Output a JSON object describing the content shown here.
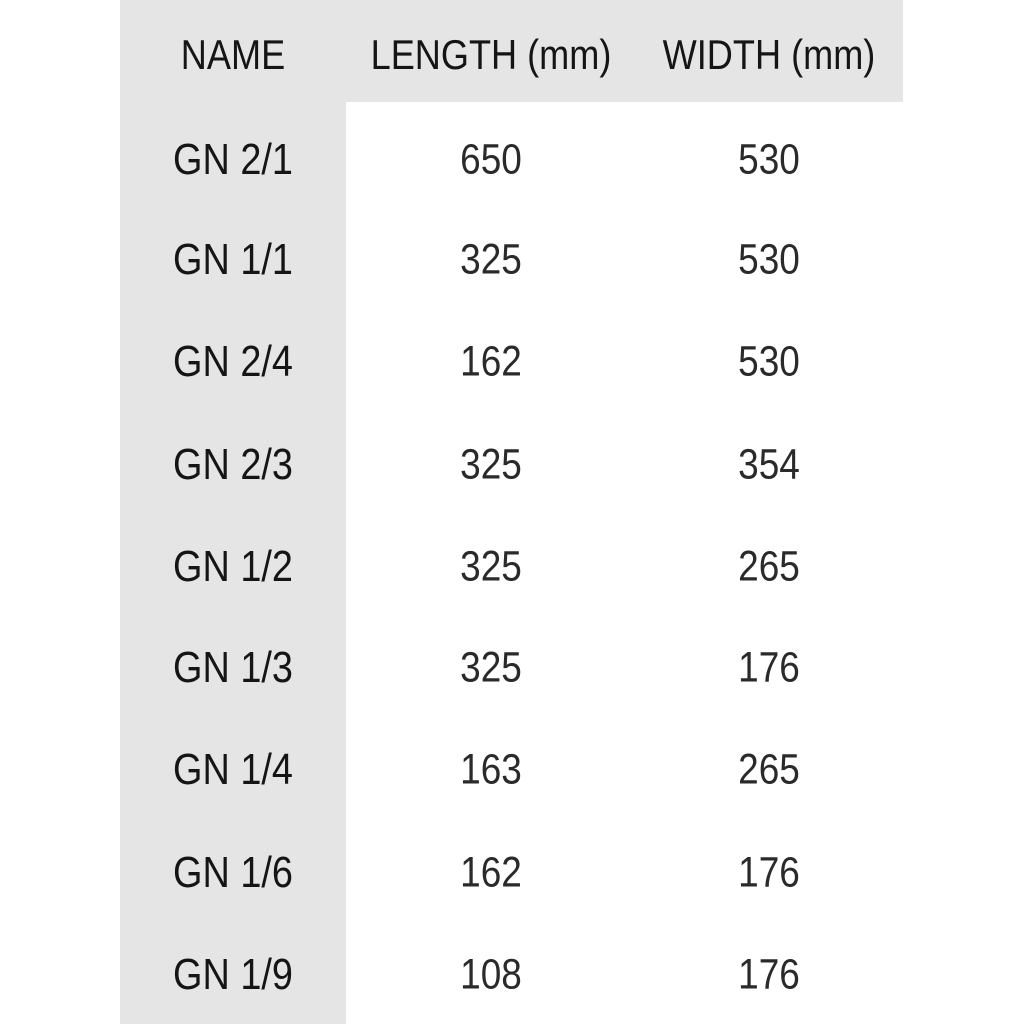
{
  "table": {
    "headers": [
      "NAME",
      "LENGTH (mm)",
      "WIDTH (mm)"
    ],
    "rows": [
      [
        "GN 2/1",
        "650",
        "530"
      ],
      [
        "GN 1/1",
        "325",
        "530"
      ],
      [
        "GN 2/4",
        "162",
        "530"
      ],
      [
        "GN 2/3",
        "325",
        "354"
      ],
      [
        "GN 1/2",
        "325",
        "265"
      ],
      [
        "GN 1/3",
        "325",
        "176"
      ],
      [
        "GN 1/4",
        "163",
        "265"
      ],
      [
        "GN 1/6",
        "162",
        "176"
      ],
      [
        "GN 1/9",
        "108",
        "176"
      ]
    ]
  },
  "colors": {
    "shade": "#e6e5e5",
    "text": "#151515"
  }
}
